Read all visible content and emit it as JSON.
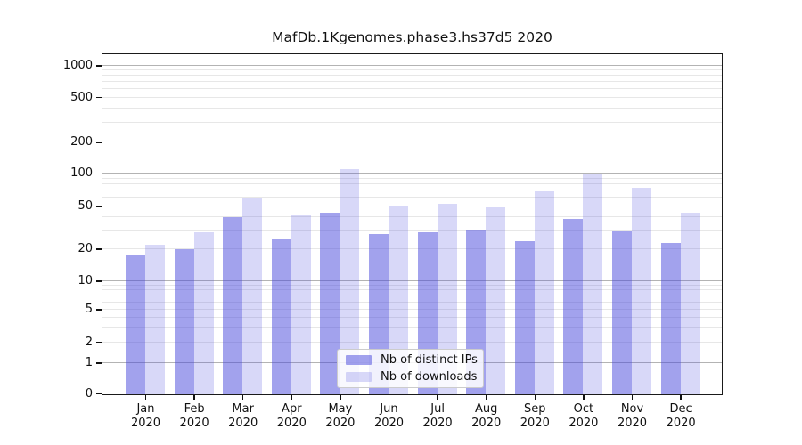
{
  "chart_data": {
    "type": "bar",
    "title": "MafDb.1Kgenomes.phase3.hs37d5 2020",
    "categories": [
      "Jan",
      "Feb",
      "Mar",
      "Apr",
      "May",
      "Jun",
      "Jul",
      "Aug",
      "Sep",
      "Oct",
      "Nov",
      "Dec"
    ],
    "year_label": "2020",
    "series": [
      {
        "name": "Nb of distinct IPs",
        "color": "rgba(70,70,220,0.50)",
        "values": [
          18,
          20,
          40,
          25,
          44,
          28,
          29,
          31,
          24,
          39,
          30,
          23
        ]
      },
      {
        "name": "Nb of downloads",
        "color": "rgba(70,70,220,0.21)",
        "values": [
          22,
          29,
          60,
          42,
          112,
          51,
          53,
          50,
          70,
          101,
          75,
          44
        ]
      }
    ],
    "y_axis": {
      "scale": "log-like",
      "tick_labels": [
        "0",
        "1",
        "2",
        "5",
        "10",
        "20",
        "50",
        "100",
        "200",
        "500",
        "1000"
      ],
      "ticks": [
        {
          "value": 0,
          "f": 1.0
        },
        {
          "value": 1,
          "f": 0.9092
        },
        {
          "value": 2,
          "f": 0.8482
        },
        {
          "value": 5,
          "f": 0.752
        },
        {
          "value": 10,
          "f": 0.6675
        },
        {
          "value": 20,
          "f": 0.5733
        },
        {
          "value": 50,
          "f": 0.4476
        },
        {
          "value": 100,
          "f": 0.3516
        },
        {
          "value": 200,
          "f": 0.2592
        },
        {
          "value": 500,
          "f": 0.1264
        },
        {
          "value": 1000,
          "f": 0.0322
        }
      ],
      "major_grid_values": [
        1,
        10,
        100,
        1000
      ],
      "minor_grid_values": [
        2,
        3,
        4,
        5,
        6,
        7,
        8,
        9,
        20,
        30,
        40,
        50,
        60,
        70,
        80,
        90,
        200,
        300,
        400,
        500,
        600,
        700,
        800,
        900
      ]
    },
    "grid": true,
    "legend_position": "bottom-center",
    "colors": {
      "major_grid": "#b3b3b3",
      "minor_grid": "#e7e7e7",
      "spine": "#1a1a1a",
      "text": "#111111"
    }
  }
}
